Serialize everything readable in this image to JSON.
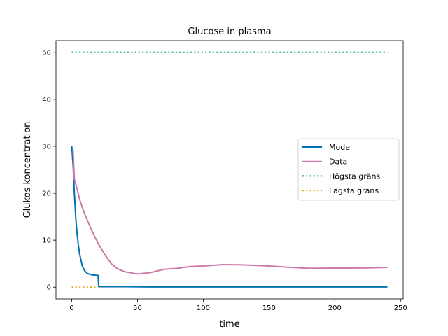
{
  "chart_data": {
    "type": "line",
    "title": "Glucose in plasma",
    "xlabel": "time",
    "ylabel": "Glukos koncentration",
    "xlim": [
      -12,
      252
    ],
    "ylim": [
      -2.5,
      52.5
    ],
    "xticks": [
      0,
      50,
      100,
      150,
      200,
      250
    ],
    "yticks": [
      0,
      10,
      20,
      30,
      40,
      50
    ],
    "grid": false,
    "legend_position": "center-right",
    "series": [
      {
        "name": "Modell",
        "color": "#0072B2",
        "style": "solid",
        "x": [
          0,
          1,
          2,
          3,
          4,
          5,
          6,
          8,
          10,
          12,
          14,
          16,
          18,
          20,
          20.5,
          30,
          40,
          60,
          80,
          100,
          120,
          140,
          160,
          180,
          200,
          220,
          240
        ],
        "y": [
          30,
          26,
          20,
          15,
          11.5,
          9,
          7,
          4.5,
          3.4,
          2.9,
          2.7,
          2.6,
          2.55,
          2.5,
          0.1,
          0.1,
          0.1,
          0.05,
          0.05,
          0.05,
          0.05,
          0.05,
          0.05,
          0.05,
          0.05,
          0.05,
          0.05
        ]
      },
      {
        "name": "Data",
        "color": "#CC79A7",
        "style": "solid",
        "x": [
          1,
          2,
          4,
          6,
          8,
          10,
          15,
          20,
          25,
          30,
          35,
          40,
          50,
          60,
          70,
          80,
          90,
          100,
          115,
          130,
          150,
          165,
          180,
          200,
          210,
          225,
          240
        ],
        "y": [
          29.2,
          23,
          21,
          18.7,
          17,
          15.5,
          12.2,
          9.3,
          7,
          5,
          3.9,
          3.3,
          2.8,
          3.1,
          3.8,
          4.0,
          4.4,
          4.5,
          4.8,
          4.75,
          4.5,
          4.25,
          4.0,
          4.05,
          4.05,
          4.1,
          4.2
        ]
      },
      {
        "name": "Högsta gräns",
        "color": "#009E73",
        "style": "dotted",
        "x": [
          0,
          240
        ],
        "y": [
          50,
          50
        ]
      },
      {
        "name": "Lägsta gräns",
        "color": "#E69F00",
        "style": "dotted",
        "x": [
          0,
          20
        ],
        "y": [
          0,
          0
        ]
      }
    ]
  }
}
